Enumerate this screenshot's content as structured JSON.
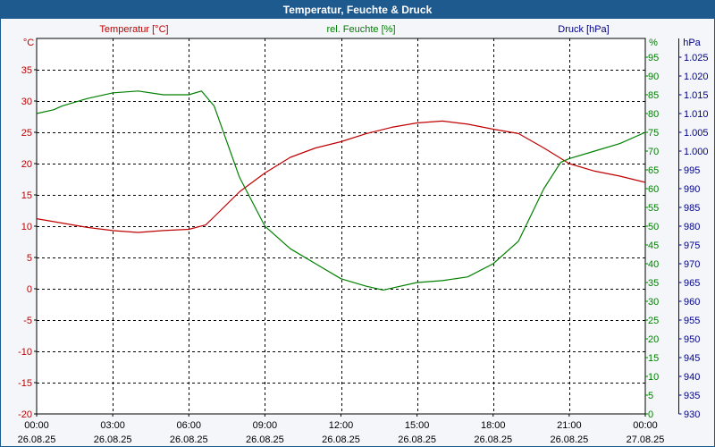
{
  "window": {
    "title": "Temperatur, Feuchte & Druck"
  },
  "colors": {
    "temperature": "#c00000",
    "humidity": "#008000",
    "pressure": "#00008b",
    "title_bar": "#1f5a8f"
  },
  "chart_data": {
    "type": "line",
    "title": "Temperatur, Feuchte & Druck",
    "grid": true,
    "x": {
      "range": [
        "00:00 26.08.25",
        "00:00 27.08.25"
      ],
      "ticks": [
        {
          "time": "00:00",
          "date": "26.08.25"
        },
        {
          "time": "03:00",
          "date": "26.08.25"
        },
        {
          "time": "06:00",
          "date": "26.08.25"
        },
        {
          "time": "09:00",
          "date": "26.08.25"
        },
        {
          "time": "12:00",
          "date": "26.08.25"
        },
        {
          "time": "15:00",
          "date": "26.08.25"
        },
        {
          "time": "18:00",
          "date": "26.08.25"
        },
        {
          "time": "21:00",
          "date": "26.08.25"
        },
        {
          "time": "00:00",
          "date": "27.08.25"
        }
      ]
    },
    "axes": {
      "temperature": {
        "title": "Temperatur [°C]",
        "unit": "°C",
        "ylim": [
          -20,
          40
        ],
        "ticks": [
          "35",
          "30",
          "25",
          "20",
          "15",
          "10",
          "5",
          "0",
          "-5",
          "-10",
          "-15",
          "-20"
        ]
      },
      "humidity": {
        "title": "rel. Feuchte [%]",
        "unit": "%",
        "ylim": [
          0,
          100
        ],
        "ticks": [
          "95",
          "90",
          "85",
          "80",
          "75",
          "70",
          "65",
          "60",
          "55",
          "50",
          "45",
          "40",
          "35",
          "30",
          "25",
          "20",
          "15",
          "10",
          "5",
          "0"
        ]
      },
      "pressure": {
        "title": "Druck [hPa]",
        "unit": "hPa",
        "ylim": [
          930,
          1030
        ],
        "ticks": [
          "1.025",
          "1.020",
          "1.015",
          "1.010",
          "1.005",
          "1.000",
          "995",
          "990",
          "985",
          "980",
          "975",
          "970",
          "965",
          "960",
          "955",
          "950",
          "945",
          "940",
          "935",
          "930"
        ]
      }
    },
    "series": [
      {
        "name": "Temperatur [°C]",
        "axis": "temperature",
        "points": [
          [
            "00:00 26.08.25",
            11.2
          ],
          [
            "01:00 26.08.25",
            10.5
          ],
          [
            "02:00 26.08.25",
            9.8
          ],
          [
            "03:00 26.08.25",
            9.3
          ],
          [
            "04:00 26.08.25",
            9.0
          ],
          [
            "05:00 26.08.25",
            9.3
          ],
          [
            "06:00 26.08.25",
            9.5
          ],
          [
            "06:40 26.08.25",
            10.2
          ],
          [
            "07:00 26.08.25",
            11.5
          ],
          [
            "08:00 26.08.25",
            15.5
          ],
          [
            "09:00 26.08.25",
            18.5
          ],
          [
            "10:00 26.08.25",
            21.0
          ],
          [
            "11:00 26.08.25",
            22.5
          ],
          [
            "12:00 26.08.25",
            23.5
          ],
          [
            "13:00 26.08.25",
            24.8
          ],
          [
            "14:00 26.08.25",
            25.8
          ],
          [
            "15:00 26.08.25",
            26.5
          ],
          [
            "16:00 26.08.25",
            26.8
          ],
          [
            "17:00 26.08.25",
            26.3
          ],
          [
            "18:00 26.08.25",
            25.5
          ],
          [
            "19:00 26.08.25",
            24.8
          ],
          [
            "20:00 26.08.25",
            22.5
          ],
          [
            "21:00 26.08.25",
            20.0
          ],
          [
            "22:00 26.08.25",
            18.8
          ],
          [
            "23:00 26.08.25",
            18.0
          ],
          [
            "00:00 27.08.25",
            17.0
          ]
        ]
      },
      {
        "name": "rel. Feuchte [%]",
        "axis": "humidity",
        "points": [
          [
            "00:00 26.08.25",
            80
          ],
          [
            "00:40 26.08.25",
            81
          ],
          [
            "01:00 26.08.25",
            82
          ],
          [
            "02:00 26.08.25",
            84
          ],
          [
            "03:00 26.08.25",
            85.5
          ],
          [
            "04:00 26.08.25",
            86
          ],
          [
            "05:00 26.08.25",
            85
          ],
          [
            "06:00 26.08.25",
            85
          ],
          [
            "06:30 26.08.25",
            86
          ],
          [
            "07:00 26.08.25",
            82
          ],
          [
            "08:00 26.08.25",
            63
          ],
          [
            "09:00 26.08.25",
            50
          ],
          [
            "10:00 26.08.25",
            44
          ],
          [
            "11:00 26.08.25",
            40
          ],
          [
            "12:00 26.08.25",
            36
          ],
          [
            "13:00 26.08.25",
            34
          ],
          [
            "13:40 26.08.25",
            33
          ],
          [
            "14:00 26.08.25",
            33.5
          ],
          [
            "15:00 26.08.25",
            35
          ],
          [
            "16:00 26.08.25",
            35.5
          ],
          [
            "17:00 26.08.25",
            36.5
          ],
          [
            "18:00 26.08.25",
            40
          ],
          [
            "19:00 26.08.25",
            46
          ],
          [
            "20:00 26.08.25",
            60
          ],
          [
            "20:40 26.08.25",
            67
          ],
          [
            "21:00 26.08.25",
            68
          ],
          [
            "22:00 26.08.25",
            70
          ],
          [
            "23:00 26.08.25",
            72
          ],
          [
            "00:00 27.08.25",
            75
          ]
        ]
      }
    ]
  }
}
